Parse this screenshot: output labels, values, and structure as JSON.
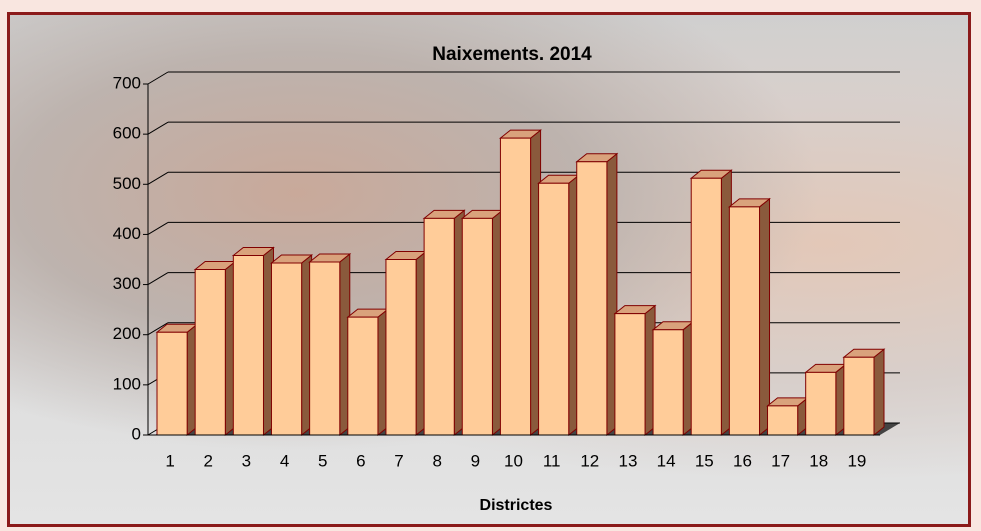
{
  "chart_data": {
    "type": "bar3d",
    "title": "Naixements. 2014",
    "x_label": "Districtes",
    "categories": [
      "1",
      "2",
      "3",
      "4",
      "5",
      "6",
      "7",
      "8",
      "9",
      "10",
      "11",
      "12",
      "13",
      "14",
      "15",
      "16",
      "17",
      "18",
      "19"
    ],
    "values": [
      205,
      330,
      358,
      343,
      345,
      235,
      350,
      432,
      432,
      592,
      502,
      545,
      242,
      210,
      512,
      455,
      58,
      125,
      155
    ],
    "color": "#ffcc99",
    "ylim": [
      0,
      700
    ],
    "yticks": [
      0,
      100,
      200,
      300,
      400,
      500,
      600,
      700
    ],
    "grid": true
  }
}
